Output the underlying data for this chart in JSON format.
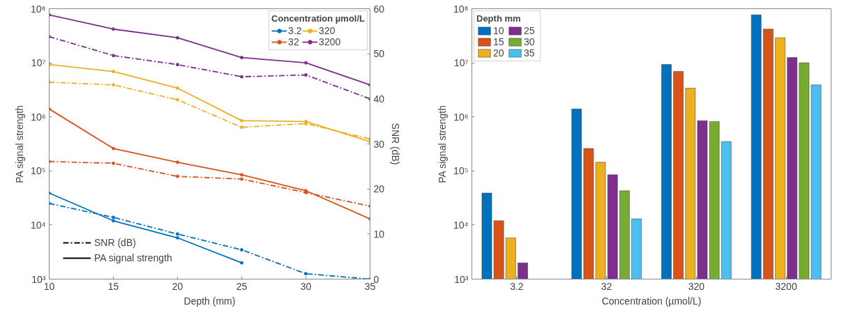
{
  "chart_data": [
    {
      "type": "line",
      "xlabel": "Depth (mm)",
      "ylabel": "PA signal strength",
      "y2label": "SNR (dB)",
      "legend_title": "Concentration µmol/L",
      "legend": "top right",
      "marker": "circle",
      "grid": false,
      "log": "y",
      "x": [
        10,
        15,
        20,
        25,
        30,
        35
      ],
      "xlim": [
        10,
        35
      ],
      "xticks": [
        10,
        15,
        20,
        25,
        30,
        35
      ],
      "ylim": [
        1000,
        100000000
      ],
      "yticks": [
        {
          "value": 1000,
          "label": "10³"
        },
        {
          "value": 10000,
          "label": "10⁴"
        },
        {
          "value": 100000,
          "label": "10⁵"
        },
        {
          "value": 1000000,
          "label": "10⁶"
        },
        {
          "value": 10000000,
          "label": "10⁷"
        },
        {
          "value": 100000000,
          "label": "10⁸"
        }
      ],
      "y2lim": [
        0,
        60
      ],
      "y2ticks": [
        0,
        10,
        20,
        30,
        40,
        50,
        60
      ],
      "annotations": [
        "SNR (dB)",
        "PA signal strength"
      ],
      "series": [
        {
          "name": "3.2",
          "color": "#0072bd",
          "line_style": "solid",
          "values": [
            39000,
            12000,
            5800,
            2000,
            null,
            null
          ]
        },
        {
          "name": "32",
          "color": "#d95319",
          "line_style": "solid",
          "values": [
            1400000,
            260000,
            145000,
            85000,
            43000,
            13000
          ]
        },
        {
          "name": "320",
          "color": "#edb120",
          "line_style": "solid",
          "values": [
            9300000,
            6900000,
            3400000,
            850000,
            820000,
            350000
          ]
        },
        {
          "name": "3200",
          "color": "#7e2f8e",
          "line_style": "solid",
          "values": [
            77000000,
            42000000,
            29000000,
            12500000,
            10000000,
            3900000
          ]
        },
        {
          "color": "#0072bd",
          "line_style": "dashed",
          "axis": "y2",
          "values": [
            16.8,
            13.7,
            10.0,
            6.5,
            1.2,
            0
          ]
        },
        {
          "color": "#d95319",
          "line_style": "dashed",
          "axis": "y2",
          "values": [
            26.1,
            25.7,
            22.8,
            22.2,
            19.2,
            16.2
          ]
        },
        {
          "color": "#edb120",
          "line_style": "dashed",
          "axis": "y2",
          "values": [
            43.7,
            43.1,
            39.8,
            33.7,
            34.5,
            31.1
          ]
        },
        {
          "color": "#7e2f8e",
          "line_style": "dashed",
          "axis": "y2",
          "values": [
            53.8,
            49.6,
            47.6,
            44.9,
            45.3,
            40.0
          ]
        }
      ]
    },
    {
      "type": "bar",
      "xlabel": "Concentration (µmol/L)",
      "ylabel": "PA signal strength",
      "legend_title": "Depth mm",
      "legend": "top left",
      "grid": false,
      "log": true,
      "categories": [
        "3.2",
        "32",
        "320",
        "3200"
      ],
      "ylim": [
        1000,
        100000000
      ],
      "yticks": [
        {
          "value": 1000,
          "label": "10³"
        },
        {
          "value": 10000,
          "label": "10⁴"
        },
        {
          "value": 100000,
          "label": "10⁵"
        },
        {
          "value": 1000000,
          "label": "10⁶"
        },
        {
          "value": 10000000,
          "label": "10⁷"
        },
        {
          "value": 100000000,
          "label": "10⁸"
        }
      ],
      "series": [
        {
          "name": "10",
          "color": "#0072bd",
          "values": [
            39000,
            1400000,
            9300000,
            77000000
          ]
        },
        {
          "name": "15",
          "color": "#d95319",
          "values": [
            12000,
            260000,
            6900000,
            42000000
          ]
        },
        {
          "name": "20",
          "color": "#edb120",
          "values": [
            5800,
            145000,
            3400000,
            29000000
          ]
        },
        {
          "name": "25",
          "color": "#7e2f8e",
          "values": [
            2000,
            85000,
            850000,
            12500000
          ]
        },
        {
          "name": "30",
          "color": "#77ac30",
          "values": [
            null,
            43000,
            820000,
            10000000
          ]
        },
        {
          "name": "35",
          "color": "#4dbeee",
          "values": [
            null,
            13000,
            350000,
            3900000
          ]
        }
      ]
    }
  ]
}
